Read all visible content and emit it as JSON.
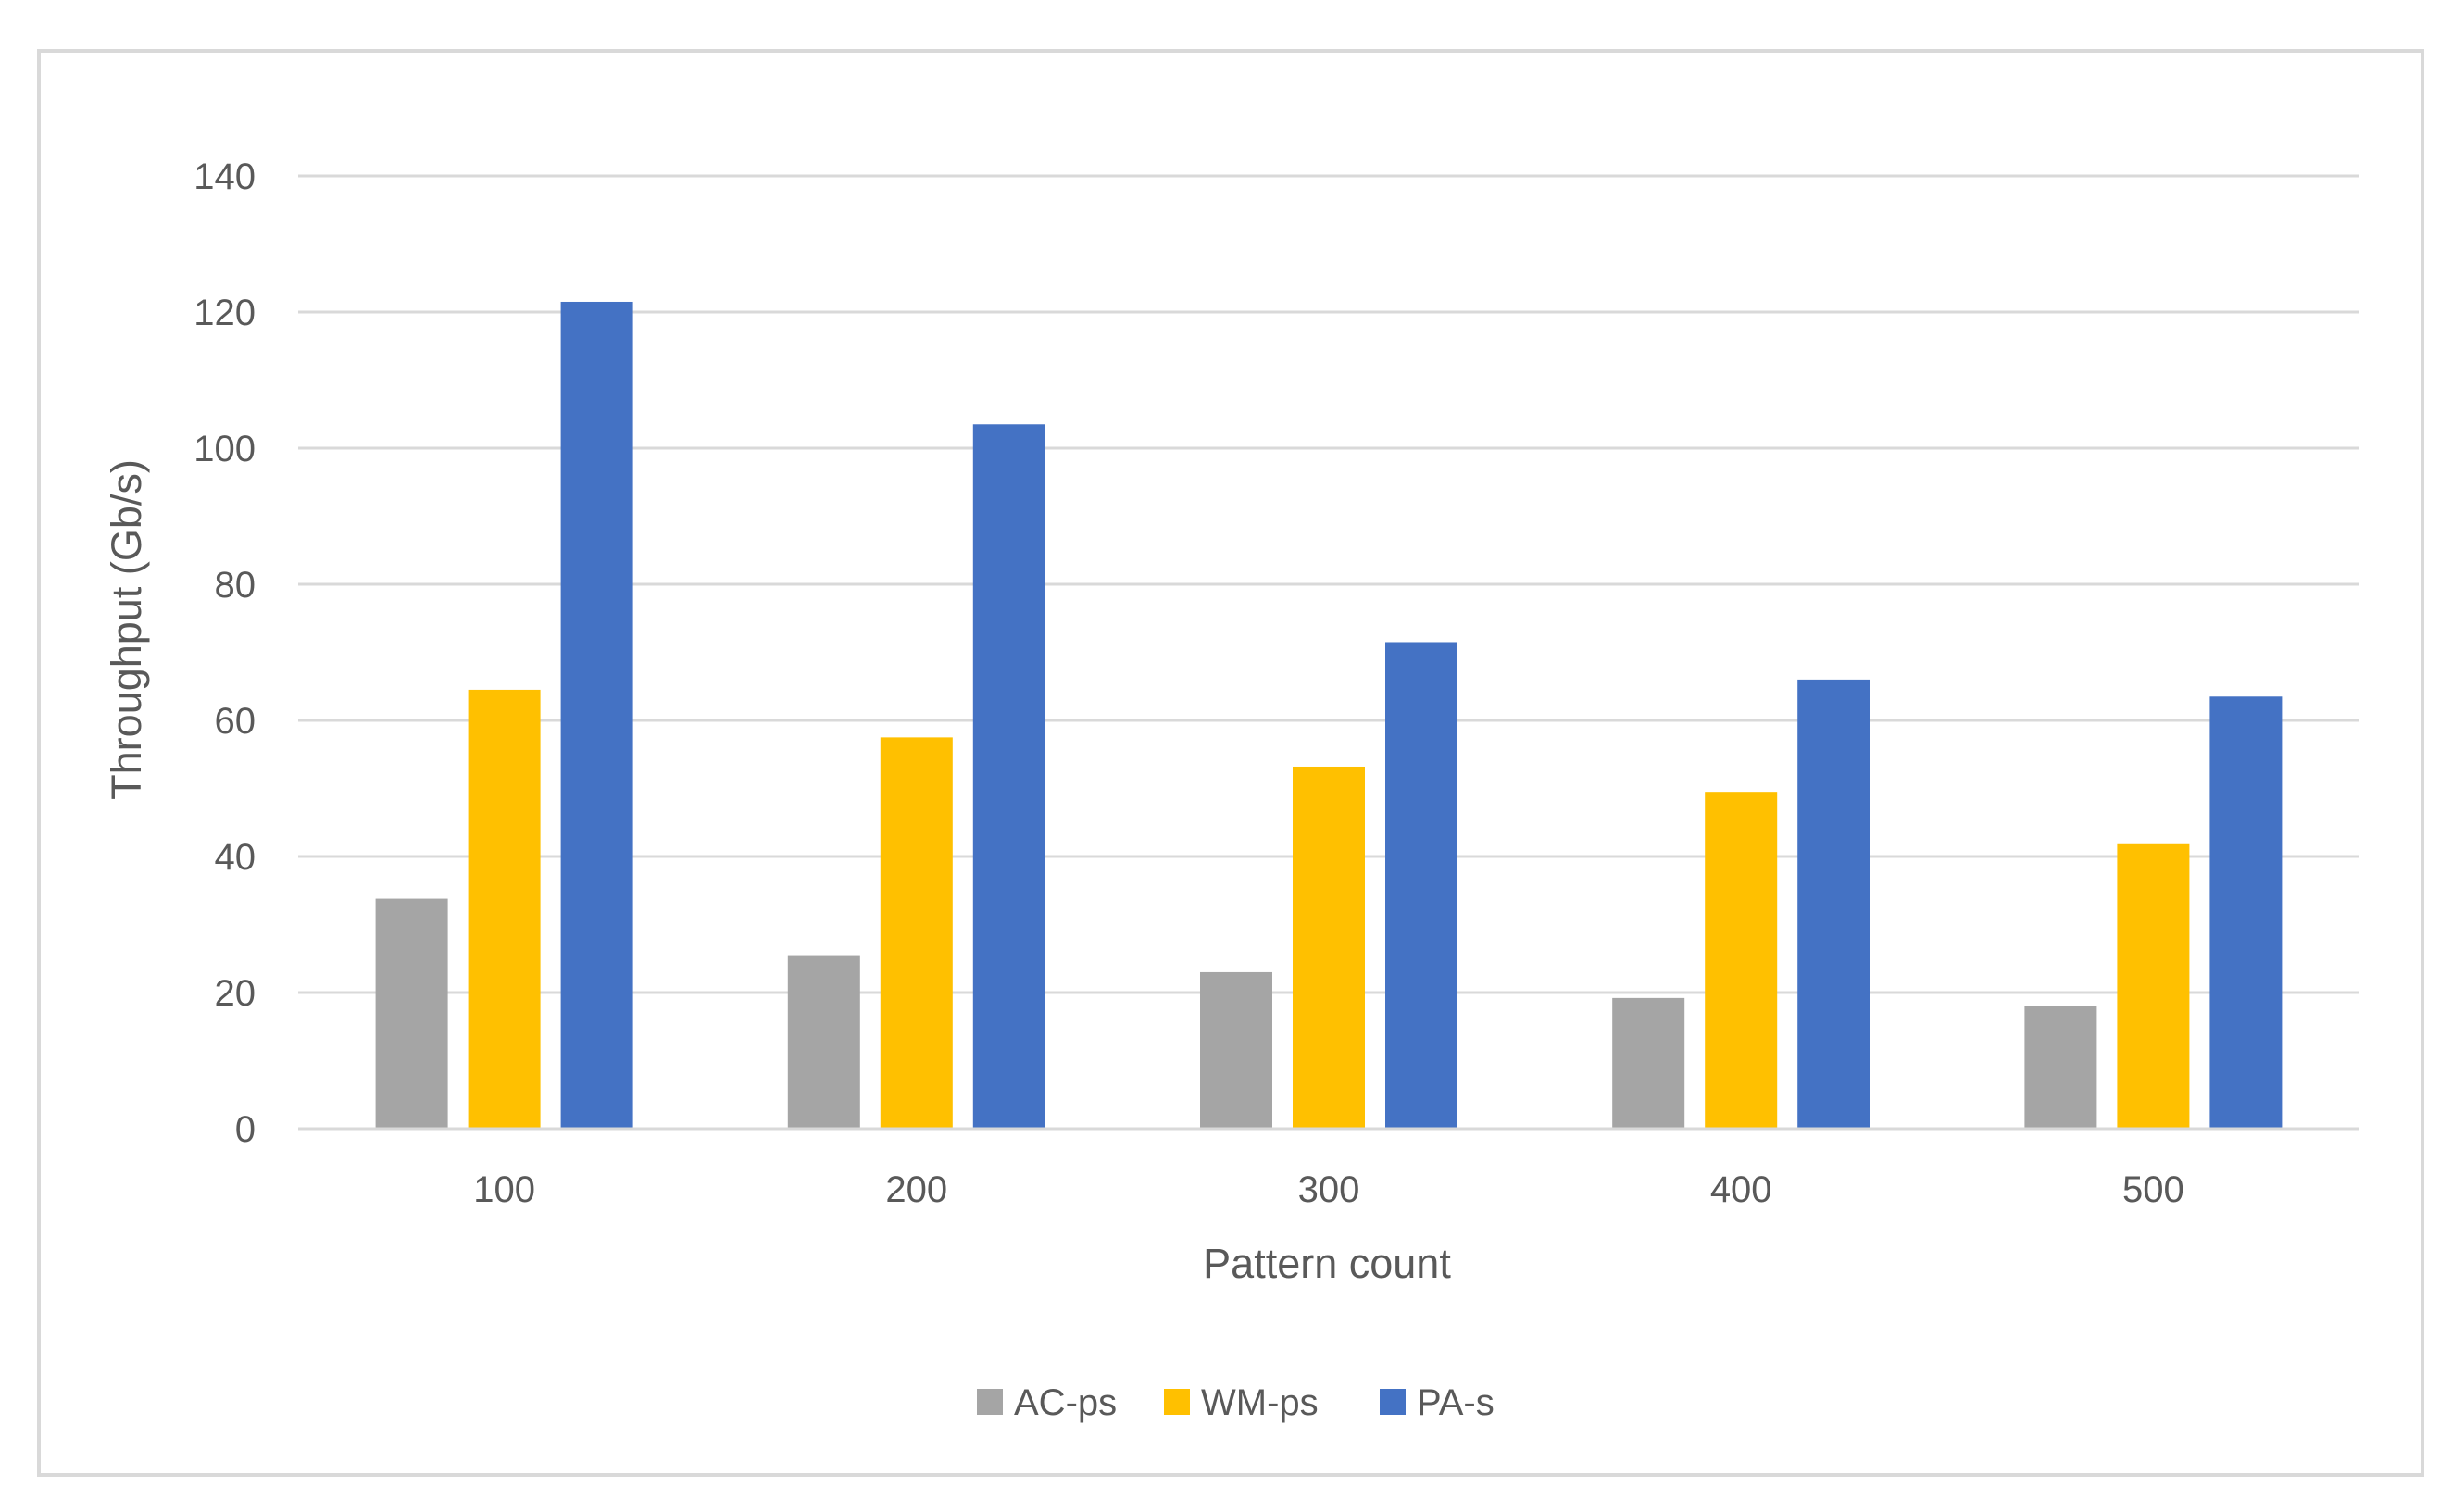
{
  "chart_data": {
    "type": "bar",
    "title": "",
    "xlabel": "Pattern count",
    "ylabel": "Throughput (Gb/s)",
    "categories": [
      "100",
      "200",
      "300",
      "400",
      "500"
    ],
    "ylim": [
      0,
      140
    ],
    "yticks": [
      0,
      20,
      40,
      60,
      80,
      100,
      120,
      140
    ],
    "ytick_labels": [
      "0",
      "20",
      "40",
      "60",
      "80",
      "100",
      "120",
      "140"
    ],
    "grid": true,
    "legend_position": "bottom",
    "series": [
      {
        "name": "AC-ps",
        "color": "#a5a5a5",
        "values": [
          33.8,
          25.5,
          23.0,
          19.2,
          18.0
        ]
      },
      {
        "name": "WM-ps",
        "color": "#ffc000",
        "values": [
          64.5,
          57.5,
          53.2,
          49.5,
          41.8
        ]
      },
      {
        "name": "PA-s",
        "color": "#4472c4",
        "values": [
          121.5,
          103.5,
          71.5,
          66.0,
          63.5
        ]
      }
    ]
  },
  "colors": {
    "gridline": "#d9d9d9",
    "frame": "#d9d9d9",
    "text": "#595959"
  }
}
